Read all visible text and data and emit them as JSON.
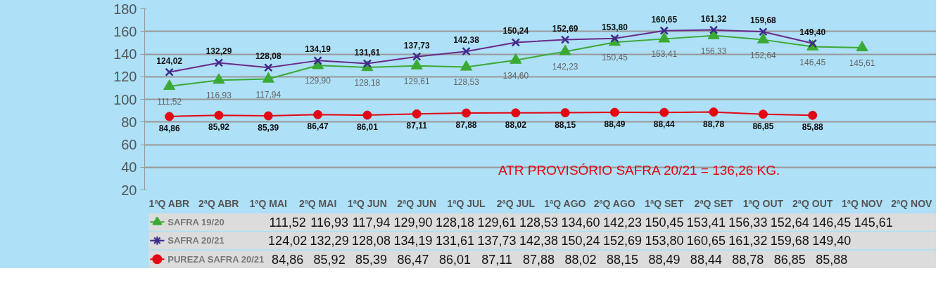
{
  "chart_data": {
    "type": "line",
    "categories": [
      "1ªQ ABR",
      "2ªQ ABR",
      "1ªQ MAI",
      "2ªQ MAI",
      "1ªQ JUN",
      "2ªQ JUN",
      "1ªQ JUL",
      "2ªQ JUL",
      "1ªQ AGO",
      "2ªQ AGO",
      "1ªQ SET",
      "2ªQ SET",
      "1ªQ OUT",
      "2ªQ OUT",
      "1ªQ NOV",
      "2ªQ NOV"
    ],
    "series": [
      {
        "name": "SAFRA 19/20",
        "color": "#3aaa35",
        "marker": "triangle",
        "values": [
          111.52,
          116.93,
          117.94,
          129.9,
          128.18,
          129.61,
          128.53,
          134.6,
          142.23,
          150.45,
          153.41,
          156.33,
          152.64,
          146.45,
          145.61,
          null
        ],
        "value_labels": [
          "111,52",
          "116,93",
          "117,94",
          "129,90",
          "128,18",
          "129,61",
          "128,53",
          "134,60",
          "142,23",
          "150,45",
          "153,41",
          "156,33",
          "152,64",
          "146,45",
          "145,61",
          null
        ]
      },
      {
        "name": "SAFRA 20/21",
        "color": "#3b2b8c",
        "marker": "cross",
        "values": [
          124.02,
          132.29,
          128.08,
          134.19,
          131.61,
          137.73,
          142.38,
          150.24,
          152.69,
          153.8,
          160.65,
          161.32,
          159.68,
          149.4,
          null,
          null
        ],
        "value_labels": [
          "124,02",
          "132,29",
          "128,08",
          "134,19",
          "131,61",
          "137,73",
          "142,38",
          "150,24",
          "152,69",
          "153,80",
          "160,65",
          "161,32",
          "159,68",
          "149,40",
          null,
          null
        ]
      },
      {
        "name": "PUREZA SAFRA 20/21",
        "color": "#e30613",
        "marker": "circle",
        "values": [
          84.86,
          85.92,
          85.39,
          86.47,
          86.01,
          87.11,
          87.88,
          88.02,
          88.15,
          88.49,
          88.44,
          88.78,
          86.85,
          85.88,
          null,
          null
        ],
        "value_labels": [
          "84,86",
          "85,92",
          "85,39",
          "86,47",
          "86,01",
          "87,11",
          "87,88",
          "88,02",
          "88,15",
          "88,49",
          "88,44",
          "88,78",
          "86,85",
          "85,88",
          null,
          null
        ]
      }
    ],
    "ylim": [
      20,
      180
    ],
    "yticks": [
      20,
      40,
      60,
      80,
      100,
      120,
      140,
      160,
      180
    ],
    "grid": "y",
    "legend": "bottom",
    "annotations": [
      "ATR PROVISÓRIO SAFRA 20/21 = 136,26 KG."
    ]
  }
}
